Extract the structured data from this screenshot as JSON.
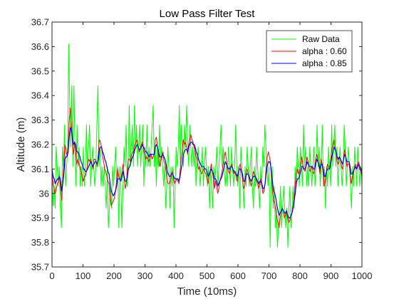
{
  "chart_data": {
    "type": "line",
    "title": "Low Pass Filter Test",
    "xlabel": "Time (10ms)",
    "ylabel": "Altitude (m)",
    "xlim": [
      0,
      1000
    ],
    "ylim": [
      35.7,
      36.7
    ],
    "x_ticks": [
      "0",
      "100",
      "200",
      "300",
      "400",
      "500",
      "600",
      "700",
      "800",
      "900",
      "1000"
    ],
    "y_ticks": [
      "35.7",
      "35.8",
      "35.9",
      "36",
      "36.1",
      "36.2",
      "36.3",
      "36.4",
      "36.5",
      "36.6",
      "36.7"
    ],
    "grid": false,
    "legend_position": "top-right",
    "series": [
      {
        "name": "Raw Data",
        "color": "#00ff00",
        "values": [
          36.1,
          35.95,
          36.03,
          35.94,
          36.19,
          36.11,
          36.03,
          36.11,
          35.94,
          35.86,
          36.19,
          36.11,
          36.28,
          36.03,
          36.11,
          36.19,
          36.61,
          36.36,
          36.19,
          36.44,
          36.11,
          36.44,
          36.19,
          36.03,
          36.28,
          36.11,
          36.19,
          36.03,
          36.11,
          36.03,
          36.19,
          36.03,
          36.11,
          36.28,
          36.11,
          36.19,
          36.28,
          36.03,
          36.11,
          36.19,
          36.11,
          36.03,
          36.11,
          36.28,
          36.44,
          36.11,
          36.19,
          36.03,
          36.11,
          36.03,
          36.11,
          36.03,
          35.94,
          36.11,
          35.86,
          35.94,
          36.03,
          35.94,
          36.11,
          36.03,
          36.11,
          36.19,
          36.03,
          36.11,
          35.86,
          36.11,
          36.03,
          35.86,
          36.03,
          36.19,
          36.11,
          36.28,
          36.03,
          36.11,
          36.36,
          36.11,
          36.19,
          36.28,
          36.11,
          36.36,
          36.19,
          36.28,
          36.11,
          36.19,
          36.28,
          36.11,
          36.19,
          36.28,
          36.03,
          36.19,
          36.11,
          36.28,
          36.11,
          36.19,
          36.11,
          36.19,
          36.28,
          36.36,
          36.11,
          36.19,
          36.03,
          36.19,
          36.11,
          36.28,
          36.11,
          36.19,
          36.11,
          36.03,
          36.11,
          35.94,
          36.03,
          36.19,
          36.11,
          35.94,
          36.11,
          36.03,
          36.11,
          35.86,
          36.03,
          36.19,
          36.11,
          36.19,
          36.36,
          36.11,
          36.28,
          36.19,
          36.11,
          36.28,
          36.19,
          36.36,
          36.19,
          36.11,
          36.28,
          36.19,
          36.11,
          36.19,
          36.11,
          36.19,
          36.03,
          36.11,
          36.19,
          36.11,
          36.03,
          36.11,
          36.19,
          36.03,
          36.11,
          36.19,
          36.11,
          36.03,
          36.11,
          35.94,
          36.11,
          36.03,
          35.94,
          36.11,
          36.03,
          36.11,
          36.19,
          36.03,
          36.11,
          36.19,
          36.28,
          36.11,
          36.19,
          36.11,
          36.03,
          36.11,
          36.03,
          36.19,
          36.11,
          36.03,
          36.19,
          36.11,
          36.03,
          36.11,
          36.28,
          36.11,
          36.03,
          36.11,
          35.94,
          36.19,
          36.11,
          36.03,
          35.94,
          36.11,
          36.03,
          36.19,
          36.11,
          36.03,
          36.11,
          36.19,
          36.03,
          35.94,
          36.11,
          36.03,
          36.19,
          36.11,
          36.03,
          35.94,
          36.11,
          36.03,
          36.19,
          36.11,
          36.28,
          36.19,
          36.11,
          36.03,
          36.11,
          35.78,
          36.03,
          36.11,
          35.94,
          36.03,
          35.86,
          35.94,
          35.78,
          35.86,
          35.94,
          36.03,
          35.86,
          35.94,
          36.03,
          35.94,
          35.86,
          35.94,
          35.78,
          35.94,
          36.03,
          35.86,
          35.94,
          36.03,
          35.94,
          36.11,
          36.03,
          36.19,
          36.11,
          36.03,
          36.19,
          36.11,
          36.03,
          36.28,
          36.11,
          36.19,
          36.03,
          36.11,
          36.03,
          36.19,
          36.11,
          36.03,
          36.11,
          36.19,
          36.03,
          36.11,
          36.28,
          36.11,
          36.19,
          36.03,
          36.11,
          36.28,
          36.03,
          36.11,
          35.94,
          36.11,
          36.03,
          36.19,
          36.11,
          36.03,
          36.28,
          36.11,
          36.19,
          36.28,
          36.11,
          36.19,
          36.03,
          36.11,
          36.19,
          36.11,
          36.03,
          36.11,
          36.28,
          36.19,
          36.03,
          36.11,
          36.19,
          36.11,
          36.03,
          35.94,
          36.11,
          36.03,
          36.19,
          36.11,
          36.03,
          36.19,
          36.11,
          36.03,
          36.11,
          36.03
        ]
      },
      {
        "name": "alpha : 0.60",
        "color": "#ff0000",
        "values": [
          36.1,
          36.04,
          36.02,
          36.0,
          36.02,
          36.04,
          36.05,
          36.07,
          36.02,
          35.97,
          36.05,
          36.12,
          36.2,
          36.18,
          36.15,
          36.19,
          36.3,
          36.35,
          36.29,
          36.2,
          36.16,
          36.21,
          36.17,
          36.12,
          36.14,
          36.12,
          36.11,
          36.09,
          36.07,
          36.05,
          36.07,
          36.07,
          36.09,
          36.12,
          36.14,
          36.13,
          36.14,
          36.12,
          36.1,
          36.14,
          36.14,
          36.13,
          36.11,
          36.16,
          36.22,
          36.21,
          36.19,
          36.15,
          36.13,
          36.1,
          36.09,
          36.07,
          36.05,
          36.04,
          35.98,
          35.95,
          35.96,
          35.97,
          35.98,
          36.01,
          36.05,
          36.1,
          36.07,
          36.06,
          36.05,
          36.09,
          36.12,
          36.07,
          36.02,
          36.04,
          36.09,
          36.14,
          36.14,
          36.13,
          36.16,
          36.17,
          36.17,
          36.2,
          36.21,
          36.22,
          36.19,
          36.17,
          36.18,
          36.2,
          36.21,
          36.18,
          36.16,
          36.14,
          36.15,
          36.14,
          36.13,
          36.15,
          36.16,
          36.14,
          36.15,
          36.16,
          36.22,
          36.23,
          36.19,
          36.16,
          36.11,
          36.13,
          36.15,
          36.17,
          36.13,
          36.12,
          36.09,
          36.05,
          36.04,
          36.04,
          36.05,
          36.08,
          36.09,
          36.06,
          36.04,
          36.05,
          36.06,
          36.05,
          36.04,
          36.09,
          36.14,
          36.17,
          36.22,
          36.2,
          36.21,
          36.19,
          36.16,
          36.2,
          36.22,
          36.24,
          36.22,
          36.21,
          36.19,
          36.17,
          36.15,
          36.13,
          36.1,
          36.11,
          36.09,
          36.08,
          36.09,
          36.1,
          36.09,
          36.08,
          36.06,
          36.04,
          36.07,
          36.09,
          36.12,
          36.09,
          36.06,
          36.02,
          36.05,
          36.03,
          36.0,
          36.02,
          36.05,
          36.07,
          36.09,
          36.12,
          36.15,
          36.17,
          36.14,
          36.1,
          36.09,
          36.08,
          36.11,
          36.12,
          36.1,
          36.08,
          36.09,
          36.07,
          36.05,
          36.08,
          36.11,
          36.12,
          36.09,
          36.06,
          36.02,
          36.03,
          36.07,
          36.1,
          36.09,
          36.06,
          36.05,
          36.03,
          36.05,
          36.09,
          36.08,
          36.07,
          36.05,
          36.04,
          36.02,
          36.04,
          36.06,
          36.03,
          36.0,
          36.01,
          36.04,
          36.11,
          36.15,
          36.17,
          36.15,
          36.13,
          36.06,
          36.0,
          35.97,
          35.96,
          35.93,
          35.9,
          35.88,
          35.86,
          35.9,
          35.92,
          35.94,
          35.93,
          35.9,
          35.91,
          35.93,
          35.9,
          35.88,
          35.89,
          35.91,
          35.92,
          35.95,
          35.99,
          36.04,
          36.08,
          36.1,
          36.08,
          36.09,
          36.12,
          36.15,
          36.12,
          36.1,
          36.09,
          36.12,
          36.15,
          36.13,
          36.1,
          36.09,
          36.11,
          36.1,
          36.08,
          36.09,
          36.14,
          36.16,
          36.14,
          36.11,
          36.08,
          36.14,
          36.12,
          36.08,
          36.03,
          36.05,
          36.09,
          36.12,
          36.11,
          36.1,
          36.14,
          36.18,
          36.2,
          36.22,
          36.19,
          36.17,
          36.13,
          36.12,
          36.15,
          36.14,
          36.11,
          36.1,
          36.15,
          36.18,
          36.15,
          36.11,
          36.12,
          36.12,
          36.09,
          36.04,
          36.06,
          36.08,
          36.11,
          36.12,
          36.1,
          36.12,
          36.13,
          36.1,
          36.09,
          36.07
        ]
      },
      {
        "name": "alpha : 0.85",
        "color": "#0000ff",
        "values": [
          36.1,
          36.07,
          36.06,
          36.04,
          36.05,
          36.06,
          36.06,
          36.07,
          36.05,
          36.01,
          36.04,
          36.08,
          36.14,
          36.15,
          36.15,
          36.17,
          36.23,
          36.27,
          36.26,
          36.23,
          36.2,
          36.21,
          36.2,
          36.17,
          36.17,
          36.16,
          36.15,
          36.13,
          36.12,
          36.1,
          36.1,
          36.09,
          36.09,
          36.1,
          36.11,
          36.12,
          36.13,
          36.12,
          36.11,
          36.12,
          36.13,
          36.13,
          36.12,
          36.14,
          36.18,
          36.19,
          36.19,
          36.17,
          36.16,
          36.14,
          36.13,
          36.11,
          36.09,
          36.08,
          36.04,
          36.01,
          36.0,
          35.99,
          36.0,
          36.01,
          36.03,
          36.06,
          36.06,
          36.06,
          36.05,
          36.07,
          36.09,
          36.07,
          36.05,
          36.05,
          36.07,
          36.1,
          36.11,
          36.12,
          36.14,
          36.15,
          36.16,
          36.18,
          36.19,
          36.2,
          36.19,
          36.18,
          36.18,
          36.19,
          36.2,
          36.19,
          36.18,
          36.17,
          36.17,
          36.16,
          36.15,
          36.16,
          36.16,
          36.16,
          36.16,
          36.16,
          36.19,
          36.2,
          36.19,
          36.17,
          36.15,
          36.15,
          36.15,
          36.16,
          36.15,
          36.14,
          36.12,
          36.09,
          36.08,
          36.07,
          36.07,
          36.08,
          36.08,
          36.07,
          36.06,
          36.06,
          36.06,
          36.06,
          36.05,
          36.07,
          36.1,
          36.12,
          36.16,
          36.17,
          36.18,
          36.18,
          36.17,
          36.19,
          36.2,
          36.21,
          36.21,
          36.2,
          36.2,
          36.19,
          36.17,
          36.16,
          36.14,
          36.13,
          36.12,
          36.11,
          36.11,
          36.11,
          36.1,
          36.1,
          36.09,
          36.07,
          36.08,
          36.09,
          36.1,
          36.09,
          36.08,
          36.06,
          36.06,
          36.05,
          36.03,
          36.04,
          36.05,
          36.06,
          36.07,
          36.09,
          36.11,
          36.13,
          36.12,
          36.11,
          36.1,
          36.1,
          36.11,
          36.11,
          36.1,
          36.09,
          36.09,
          36.08,
          36.07,
          36.08,
          36.1,
          36.1,
          36.09,
          36.08,
          36.05,
          36.05,
          36.07,
          36.08,
          36.08,
          36.07,
          36.06,
          36.05,
          36.06,
          36.07,
          36.07,
          36.07,
          36.06,
          36.05,
          36.04,
          36.05,
          36.05,
          36.04,
          36.02,
          36.02,
          36.04,
          36.08,
          36.11,
          36.13,
          36.13,
          36.12,
          36.08,
          36.04,
          36.01,
          36.0,
          35.98,
          35.95,
          35.93,
          35.91,
          35.92,
          35.93,
          35.94,
          35.93,
          35.92,
          35.92,
          35.93,
          35.91,
          35.9,
          35.9,
          35.91,
          35.92,
          35.94,
          35.97,
          36.0,
          36.04,
          36.06,
          36.06,
          36.07,
          36.09,
          36.11,
          36.11,
          36.1,
          36.1,
          36.11,
          36.13,
          36.12,
          36.11,
          36.11,
          36.11,
          36.11,
          36.1,
          36.1,
          36.12,
          36.14,
          36.13,
          36.12,
          36.1,
          36.12,
          36.12,
          36.1,
          36.07,
          36.07,
          36.09,
          36.1,
          36.1,
          36.1,
          36.12,
          36.15,
          36.17,
          36.19,
          36.18,
          36.17,
          36.15,
          36.14,
          36.15,
          36.14,
          36.13,
          36.12,
          36.14,
          36.16,
          36.15,
          36.13,
          36.13,
          36.13,
          36.11,
          36.08,
          36.08,
          36.09,
          36.1,
          36.11,
          36.1,
          36.11,
          36.12,
          36.11,
          36.1,
          36.08
        ]
      }
    ]
  }
}
